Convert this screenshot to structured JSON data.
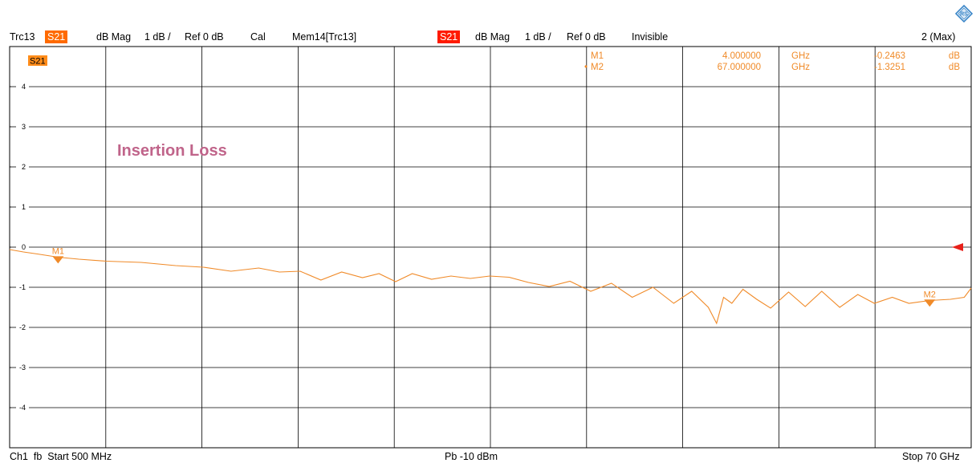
{
  "header": {
    "trace": "Trc13",
    "trace_param": "S21",
    "trace_format": "dB Mag",
    "trace_scale": "1 dB /",
    "trace_ref": "Ref 0 dB",
    "trace_cal": "Cal",
    "memory": "Mem14[Trc13]",
    "memory_param": "S21",
    "memory_format": "dB Mag",
    "memory_scale": "1 dB /",
    "memory_ref": "Ref 0 dB",
    "memory_state": "Invisible",
    "trace_count": "2 (Max)"
  },
  "footer": {
    "channel": "Ch1",
    "sweep": "fb",
    "start": "Start  500 MHz",
    "power": "Pb   -10 dBm",
    "stop": "Stop  70 GHz"
  },
  "colors": {
    "trace": "#f08a28",
    "trace_label": "#ff6a00",
    "memory_label": "#ff1a00",
    "annotation": "#c0648a",
    "ref_arrow": "#e8201a"
  },
  "chart_data": {
    "type": "line",
    "title": "",
    "annotation": "Insertion Loss",
    "trace_tag": "S21",
    "xlabel": "",
    "ylabel": "",
    "xlim": [
      0.5,
      70
    ],
    "ylim": [
      -5,
      5
    ],
    "x_unit": "GHz",
    "y_unit": "dB",
    "grid": true,
    "x_divisions": 10,
    "y_ticks": [
      4,
      3,
      2,
      1,
      0,
      -1,
      -2,
      -3,
      -4
    ],
    "reference_level": 0,
    "series": [
      {
        "x": [
          0.5,
          1.5,
          2.5,
          4.0,
          5.5,
          7.5,
          10,
          12.5,
          14.5,
          16.5,
          18.5,
          20,
          21.5,
          23,
          24.5,
          26,
          27.2,
          28.4,
          29.6,
          31,
          32.4,
          33.8,
          35.2,
          36.6,
          38,
          39.5,
          41,
          42.5,
          44,
          45.5,
          47,
          48.5,
          49.8,
          51,
          51.6,
          52.1,
          52.7,
          53.5,
          54.5,
          55.5,
          56.8,
          58,
          59.2,
          60.5,
          61.8,
          63,
          64.3,
          65.5,
          67,
          68.5,
          69.5,
          70
        ],
        "y": [
          -0.06,
          -0.12,
          -0.17,
          -0.25,
          -0.3,
          -0.35,
          -0.38,
          -0.46,
          -0.5,
          -0.6,
          -0.52,
          -0.62,
          -0.6,
          -0.82,
          -0.62,
          -0.76,
          -0.66,
          -0.86,
          -0.66,
          -0.8,
          -0.72,
          -0.78,
          -0.72,
          -0.75,
          -0.88,
          -0.98,
          -0.85,
          -1.1,
          -0.9,
          -1.25,
          -1.0,
          -1.4,
          -1.1,
          -1.5,
          -1.9,
          -1.25,
          -1.4,
          -1.05,
          -1.3,
          -1.52,
          -1.12,
          -1.48,
          -1.1,
          -1.5,
          -1.18,
          -1.4,
          -1.25,
          -1.4,
          -1.33,
          -1.3,
          -1.25,
          -1.02
        ]
      }
    ],
    "markers": [
      {
        "name": "M1",
        "freq": "4.000000",
        "unit": "GHz",
        "value": "-0.2463",
        "value_unit": "dB",
        "x": 4.0,
        "y": -0.2463
      },
      {
        "name": "M2",
        "freq": "67.000000",
        "unit": "GHz",
        "value": "-1.3251",
        "value_unit": "dB",
        "x": 67.0,
        "y": -1.3251
      }
    ],
    "active_marker_symbol": "•"
  }
}
